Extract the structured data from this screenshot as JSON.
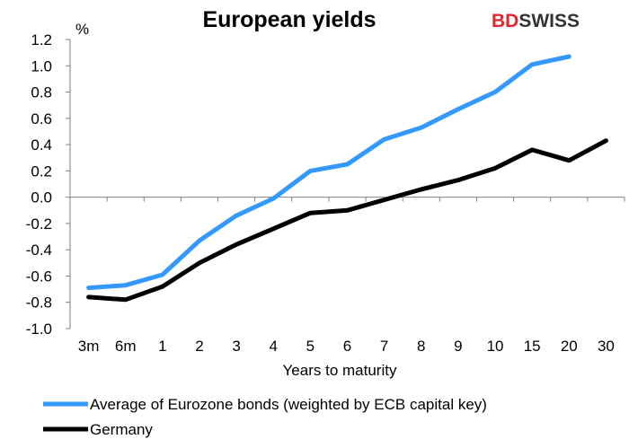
{
  "chart_data": {
    "type": "line",
    "title": "European yields",
    "ylabel": "%",
    "xlabel": "Years to maturity",
    "categories": [
      "3m",
      "6m",
      "1",
      "2",
      "3",
      "4",
      "5",
      "6",
      "7",
      "8",
      "9",
      "10",
      "15",
      "20",
      "30"
    ],
    "ylim": [
      -1.0,
      1.2
    ],
    "yticks": [
      "1.2",
      "1.0",
      "0.8",
      "0.6",
      "0.4",
      "0.2",
      "0.0",
      "-0.2",
      "-0.4",
      "-0.6",
      "-0.8",
      "-1.0"
    ],
    "ytick_values": [
      1.2,
      1.0,
      0.8,
      0.6,
      0.4,
      0.2,
      0.0,
      -0.2,
      -0.4,
      -0.6,
      -0.8,
      -1.0
    ],
    "grid": false,
    "legend_position": "bottom",
    "series": [
      {
        "name": "Average of Eurozone bonds (weighted by ECB capital key)",
        "color": "#3399ff",
        "values": [
          -0.69,
          -0.67,
          -0.59,
          -0.33,
          -0.14,
          -0.01,
          0.2,
          0.25,
          0.44,
          0.53,
          0.67,
          0.8,
          1.01,
          1.07,
          null
        ]
      },
      {
        "name": "Germany",
        "color": "#000000",
        "values": [
          -0.76,
          -0.78,
          -0.68,
          -0.5,
          -0.36,
          -0.24,
          -0.12,
          -0.1,
          -0.02,
          0.06,
          0.13,
          0.22,
          0.36,
          0.28,
          0.43
        ]
      }
    ]
  },
  "logo": {
    "part1": "BD",
    "part2": "SWISS",
    "color1": "#e3262e",
    "color2": "#333333"
  }
}
